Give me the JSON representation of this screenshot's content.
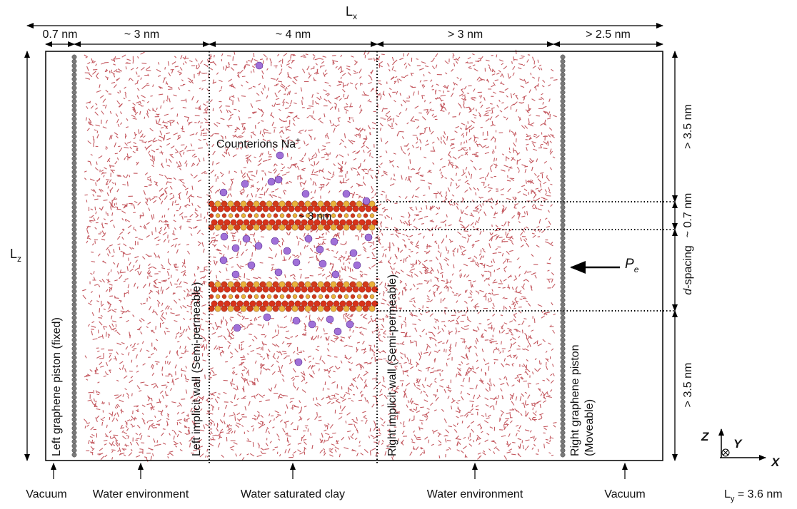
{
  "lx": {
    "symbol": "L",
    "subscript": "x"
  },
  "lz": {
    "symbol": "L",
    "subscript": "z"
  },
  "top_dimensions": [
    "0.7 nm",
    "~ 3 nm",
    "~ 4 nm",
    "> 3 nm",
    "> 2.5 nm"
  ],
  "right_dimensions": [
    "> 3.5 nm",
    "~ 0.7 nm",
    "> 3.5 nm"
  ],
  "d_spacing": {
    "italic": "d",
    "rest": "-spacing"
  },
  "counterions": {
    "text": "Counterions Na",
    "superscript": "+"
  },
  "clay_width": "~ 3 nm",
  "walls": {
    "left_piston": [
      "Left graphene piston (fixed)"
    ],
    "left_wall": [
      "Left implicit wall (Semi-permeable)"
    ],
    "right_wall": [
      "Right implicit wall (Semi-permeable)"
    ],
    "right_piston": [
      "Right graphene piston",
      "(Moveable)"
    ]
  },
  "pressure": {
    "symbol": "P",
    "subscript": "e"
  },
  "bottom_labels": [
    "Vacuum",
    "Water environment",
    "Water saturated clay",
    "Water environment",
    "Vacuum"
  ],
  "axes": {
    "z": "Z",
    "y": "Y",
    "x": "X"
  },
  "ly": {
    "symbol": "L",
    "subscript": "y",
    "rest": " = 3.6 nm"
  }
}
